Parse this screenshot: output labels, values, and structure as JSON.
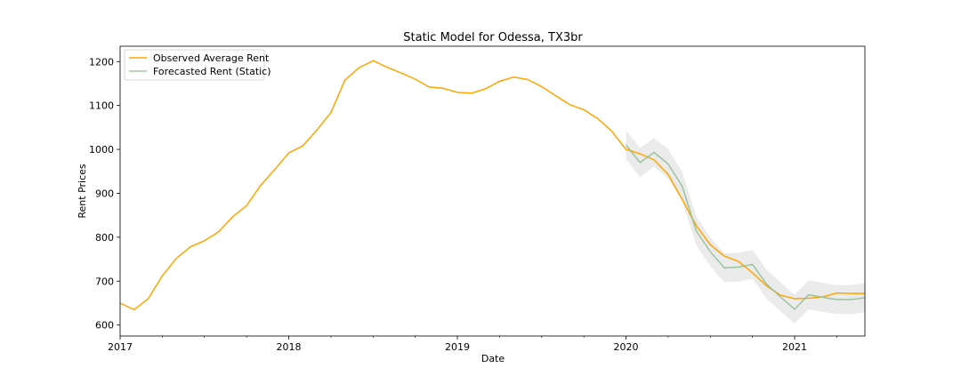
{
  "chart_data": {
    "type": "line",
    "title": "Static Model for Odessa, TX3br",
    "xlabel": "Date",
    "ylabel": "Rent Prices",
    "xlim": [
      "2017-01",
      "2021-06"
    ],
    "ylim": [
      575,
      1235
    ],
    "x_ticks": [
      "2017",
      "2018",
      "2019",
      "2020",
      "2021"
    ],
    "y_ticks": [
      600,
      700,
      800,
      900,
      1000,
      1100,
      1200
    ],
    "grid": false,
    "legend_position": "top-left",
    "series": [
      {
        "name": "Observed Average Rent",
        "color": "#ffa500",
        "x": [
          "2017-01",
          "2017-02",
          "2017-03",
          "2017-04",
          "2017-05",
          "2017-06",
          "2017-07",
          "2017-08",
          "2017-09",
          "2017-10",
          "2017-11",
          "2017-12",
          "2018-01",
          "2018-02",
          "2018-03",
          "2018-04",
          "2018-05",
          "2018-06",
          "2018-07",
          "2018-08",
          "2018-09",
          "2018-10",
          "2018-11",
          "2018-12",
          "2019-01",
          "2019-02",
          "2019-03",
          "2019-04",
          "2019-05",
          "2019-06",
          "2019-07",
          "2019-08",
          "2019-09",
          "2019-10",
          "2019-11",
          "2019-12",
          "2020-01",
          "2020-02",
          "2020-03",
          "2020-04",
          "2020-05",
          "2020-06",
          "2020-07",
          "2020-08",
          "2020-09",
          "2020-10",
          "2020-11",
          "2020-12",
          "2021-01",
          "2021-02",
          "2021-03",
          "2021-04",
          "2021-05",
          "2021-06"
        ],
        "values": [
          650,
          635,
          660,
          712,
          752,
          778,
          792,
          812,
          846,
          872,
          918,
          954,
          992,
          1008,
          1044,
          1084,
          1158,
          1186,
          1202,
          1187,
          1174,
          1160,
          1142,
          1139,
          1130,
          1128,
          1138,
          1155,
          1165,
          1159,
          1143,
          1122,
          1102,
          1090,
          1070,
          1041,
          1000,
          990,
          976,
          943,
          886,
          826,
          783,
          757,
          745,
          719,
          689,
          668,
          660,
          661,
          664,
          673,
          672,
          672
        ]
      },
      {
        "name": "Forecasted Rent (Static)",
        "color": "#8fbc8f",
        "x": [
          "2020-01",
          "2020-02",
          "2020-03",
          "2020-04",
          "2020-05",
          "2020-06",
          "2020-07",
          "2020-08",
          "2020-09",
          "2020-10",
          "2020-11",
          "2020-12",
          "2021-01",
          "2021-02",
          "2021-03",
          "2021-04",
          "2021-05",
          "2021-06"
        ],
        "values": [
          1010,
          970,
          993,
          967,
          916,
          814,
          767,
          730,
          732,
          738,
          693,
          664,
          636,
          669,
          663,
          658,
          658,
          662
        ],
        "ci_lower": [
          977,
          937,
          960,
          934,
          883,
          781,
          734,
          697,
          699,
          705,
          660,
          631,
          603,
          636,
          630,
          625,
          625,
          629
        ],
        "ci_upper": [
          1043,
          1003,
          1026,
          1000,
          949,
          847,
          800,
          763,
          765,
          771,
          726,
          697,
          669,
          702,
          696,
          691,
          691,
          695
        ]
      }
    ]
  }
}
